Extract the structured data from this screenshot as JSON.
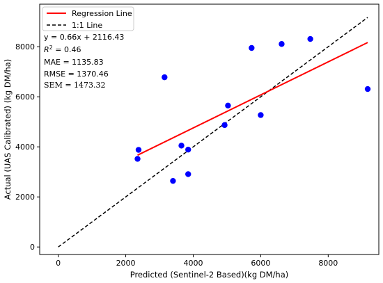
{
  "chart_data": {
    "type": "scatter",
    "xlabel": "Predicted (Sentinel-2 Based)(kg DM/ha)",
    "ylabel": "Actual (UAS Calibrated) (kg DM/ha)",
    "xlim": [
      -550,
      9500
    ],
    "ylim": [
      -300,
      9700
    ],
    "x_ticks": [
      0,
      2000,
      4000,
      6000,
      8000
    ],
    "y_ticks": [
      0,
      2000,
      4000,
      6000,
      8000
    ],
    "x_tick_labels": [
      "0",
      "2000",
      "4000",
      "6000",
      "8000"
    ],
    "y_tick_labels": [
      "0",
      "2000",
      "4000",
      "6000",
      "8000"
    ],
    "grid": false,
    "legend_position": "top-left",
    "series": [
      {
        "kind": "scatter",
        "color": "#0000ff",
        "x": [
          2350,
          2380,
          3150,
          3400,
          3650,
          3850,
          3850,
          4930,
          5030,
          5730,
          6000,
          6620,
          7470,
          9170
        ],
        "y": [
          3520,
          3880,
          6780,
          2640,
          4050,
          3890,
          2910,
          4870,
          5650,
          7950,
          5270,
          8110,
          8310,
          6310
        ]
      },
      {
        "kind": "line",
        "name": "Regression Line",
        "color": "#ff0000",
        "style": "solid",
        "slope": 0.66,
        "intercept": 2116.43,
        "x": [
          2350,
          9170
        ]
      },
      {
        "kind": "line",
        "name": "1:1 Line",
        "color": "#000000",
        "style": "dashed",
        "x": [
          0,
          9170
        ],
        "y": [
          0,
          9170
        ]
      }
    ],
    "annotations": {
      "equation": "y = 0.66x + 2116.43",
      "r2_label": "R",
      "r2_sup": "2",
      "r2_value": " = 0.46",
      "mae": "MAE = 1135.83",
      "rmse": "RMSE = 1370.46",
      "sem": "SEM = 1473.32"
    }
  }
}
